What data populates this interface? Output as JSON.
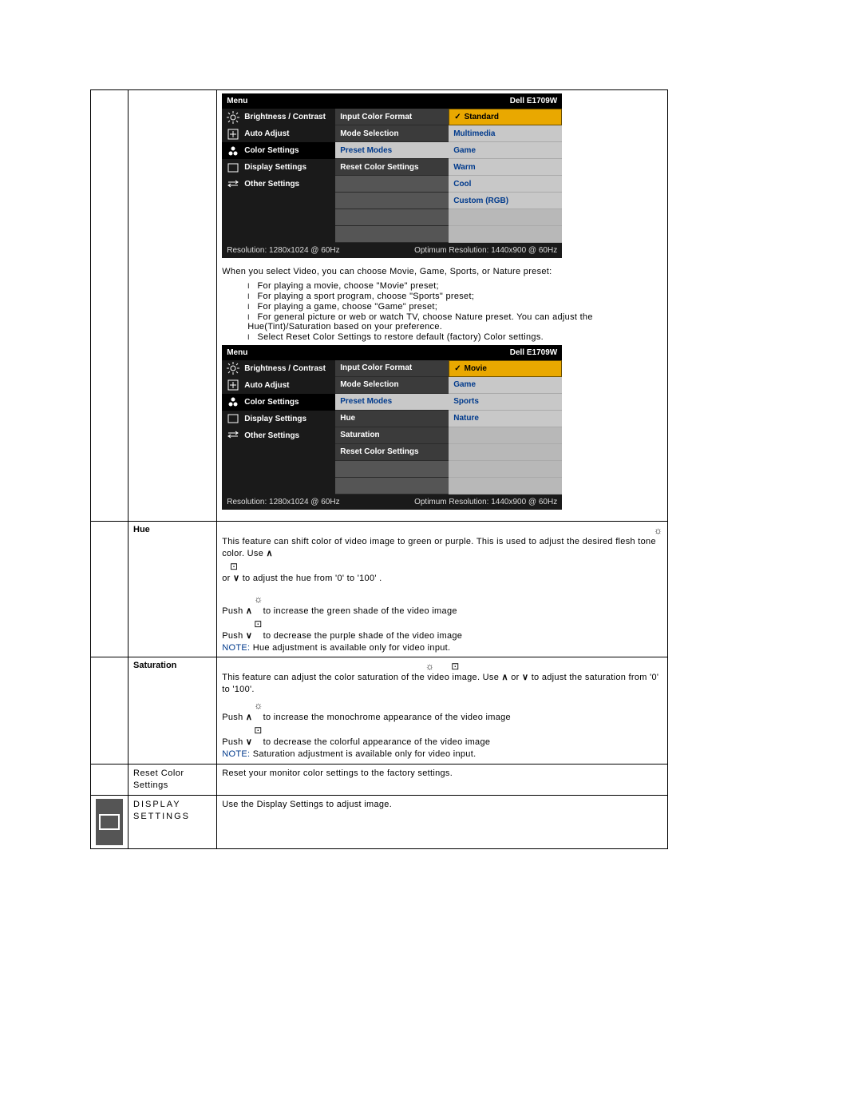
{
  "osd1": {
    "title_left": "Menu",
    "title_right": "Dell E1709W",
    "left_items": [
      "Brightness / Contrast",
      "Auto Adjust",
      "Color Settings",
      "Display Settings",
      "Other Settings"
    ],
    "left_selected_index": 2,
    "mid_items": [
      "Input Color Format",
      "Mode Selection",
      "Preset Modes",
      "Reset Color Settings"
    ],
    "mid_selected_index": 2,
    "right_items": [
      "Standard",
      "Multimedia",
      "Game",
      "Warm",
      "Cool",
      "Custom (RGB)"
    ],
    "right_selected_index": 0,
    "footer_left": "Resolution: 1280x1024 @ 60Hz",
    "footer_right": "Optimum Resolution: 1440x900 @ 60Hz"
  },
  "text_between": "When you select Video, you can choose Movie, Game, Sports, or Nature preset:",
  "bullets": [
    "For playing a movie, choose \"Movie\" preset;",
    "For playing a sport program, choose \"Sports\" preset;",
    "For playing a game, choose \"Game\" preset;",
    "For general picture or web or watch TV, choose Nature preset. You can adjust the Hue(Tint)/Saturation based on your preference.",
    "Select Reset Color Settings to restore default (factory) Color settings."
  ],
  "osd2": {
    "title_left": "Menu",
    "title_right": "Dell E1709W",
    "left_items": [
      "Brightness / Contrast",
      "Auto Adjust",
      "Color Settings",
      "Display Settings",
      "Other Settings"
    ],
    "left_selected_index": 2,
    "mid_items": [
      "Input Color Format",
      "Mode Selection",
      "Preset Modes",
      "Hue",
      "Saturation",
      "Reset Color Settings"
    ],
    "mid_selected_index": 2,
    "right_items": [
      "Movie",
      "Game",
      "Sports",
      "Nature"
    ],
    "right_selected_index": 0,
    "footer_left": "Resolution: 1280x1024 @ 60Hz",
    "footer_right": "Optimum Resolution: 1440x900 @ 60Hz"
  },
  "hue": {
    "label": "Hue",
    "p1a": "This feature can shift color of video image to green or purple. This is used to adjust the desired flesh tone color. Use ",
    "p1b": " or ",
    "p1c": " to adjust the hue from '0' to '100' .",
    "p2a": "Push ",
    "p2b": " to increase the green shade of the video image",
    "p3a": "Push ",
    "p3b": " to decrease the purple shade of the video image",
    "note_lbl": "NOTE:",
    "note_txt": " Hue adjustment is available only for video input."
  },
  "sat": {
    "label": "Saturation",
    "p1a": "This feature can adjust the color saturation of the video image. Use ",
    "p1b": " or ",
    "p1c": " to adjust the saturation from '0' to '100'.",
    "p2a": "Push ",
    "p2b": " to increase the monochrome appearance of the video image",
    "p3a": "Push ",
    "p3b": " to decrease the colorful appearance of the video image",
    "note_lbl": "NOTE:",
    "note_txt": " Saturation adjustment is available only for video input."
  },
  "reset": {
    "label": "Reset Color Settings",
    "text": "Reset your monitor color settings to the factory settings."
  },
  "disp": {
    "label": "DISPLAY SETTINGS",
    "text": "Use the Display Settings to adjust image."
  },
  "glyphs": {
    "up": "∧",
    "down": "∨",
    "sun": "☼",
    "target": "⊡",
    "check": "✓"
  },
  "colors": {
    "osd_accent": "#e9a800",
    "link_blue": "#003a8c"
  }
}
